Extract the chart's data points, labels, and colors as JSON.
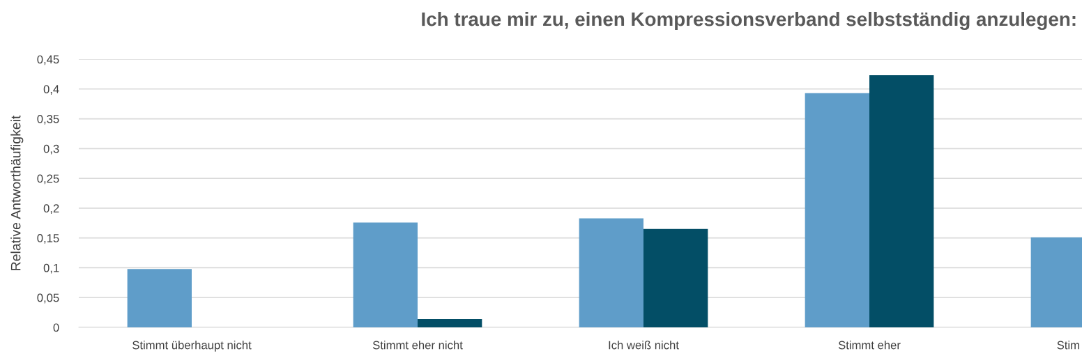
{
  "chart_data": {
    "type": "bar",
    "title": "Ich traue mir zu, einen Kompressionsverband selbstständig anzulegen:",
    "ylabel": "Relative Antworthäufigkeit",
    "categories": [
      "Stimmt überhaupt nicht",
      "Stimmt eher nicht",
      "Ich weiß nicht",
      "Stimmt eher",
      "Stim"
    ],
    "series": [
      {
        "color": "#5f9dc9",
        "values": [
          0.098,
          0.176,
          0.183,
          0.393,
          0.151
        ]
      },
      {
        "color": "#034e66",
        "values": [
          0,
          0.014,
          0.165,
          0.423,
          null
        ]
      }
    ],
    "ylim": [
      0,
      0.45
    ],
    "yticks": [
      0,
      {
        "value": 0.05,
        "label": "0,05"
      },
      {
        "value": 0.1,
        "label": "0,1"
      },
      {
        "value": 0.15,
        "label": "0,15"
      },
      {
        "value": 0.2,
        "label": "0,2"
      },
      {
        "value": 0.25,
        "label": "0,25"
      },
      {
        "value": 0.3,
        "label": "0,3"
      },
      {
        "value": 0.35,
        "label": "0,35"
      },
      {
        "value": 0.4,
        "label": "0,4"
      },
      {
        "value": 0.45,
        "label": "0,45"
      }
    ],
    "grid": "y"
  }
}
